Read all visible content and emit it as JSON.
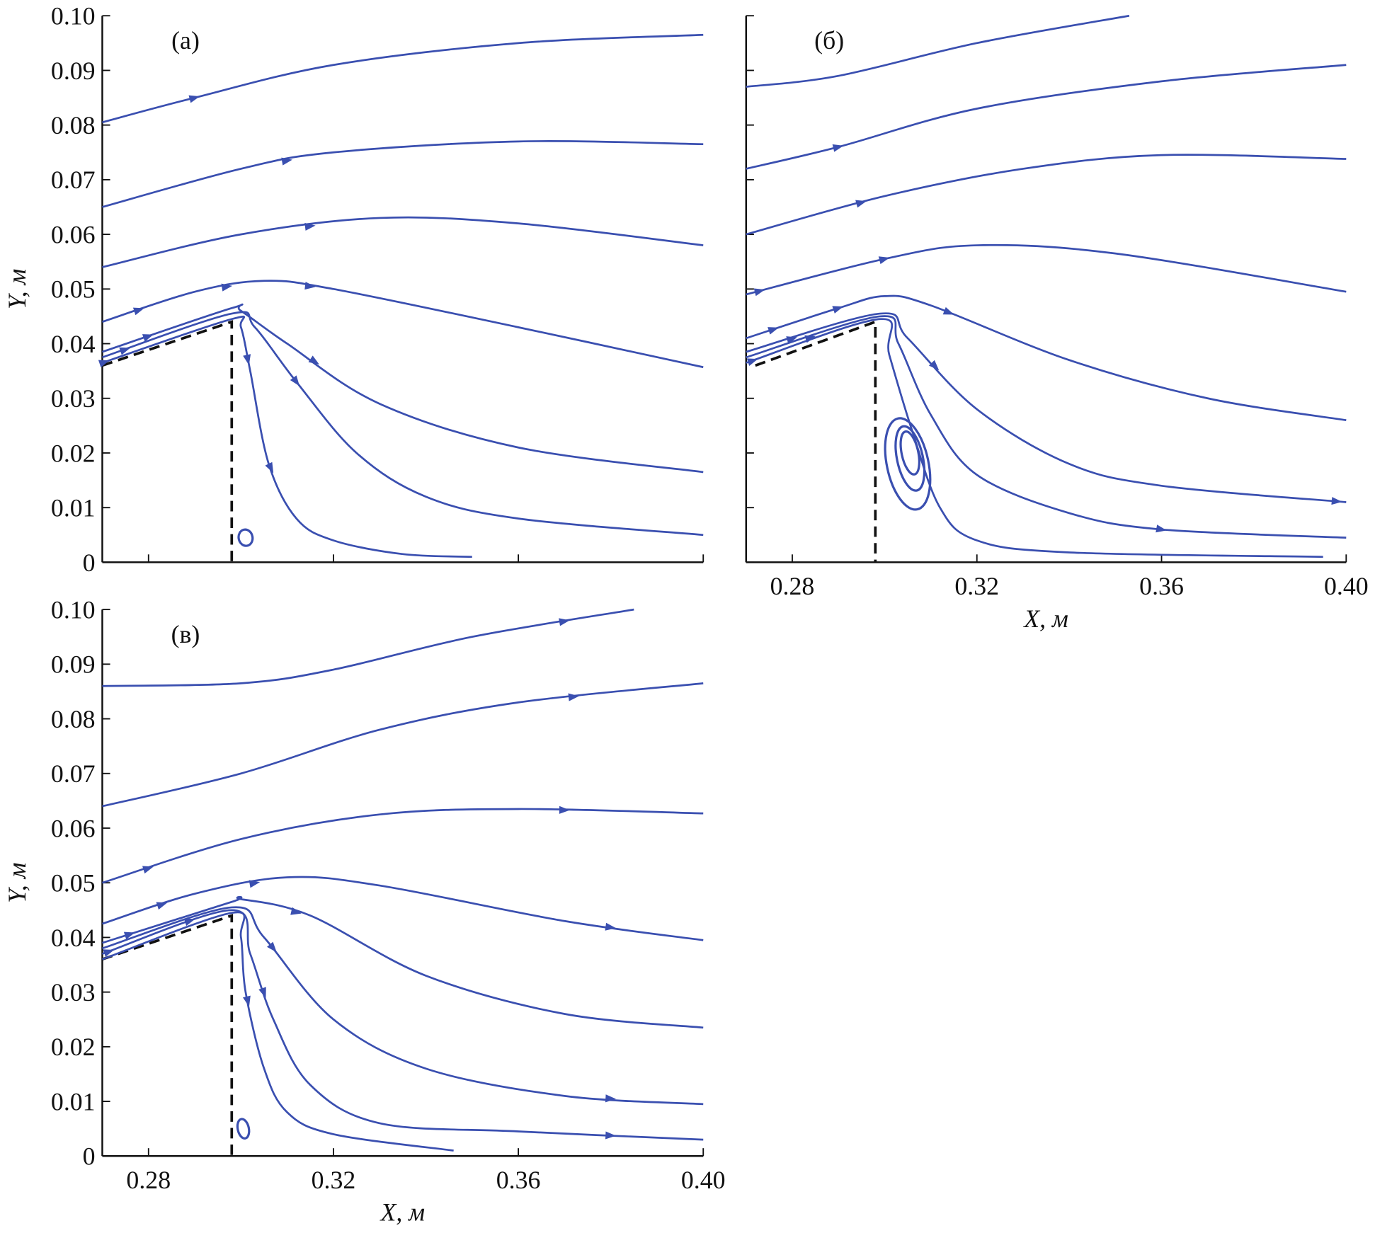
{
  "chart_data": [
    {
      "type": "line",
      "panel_label": "(а)",
      "xlabel": "",
      "ylabel": "Y, м",
      "xlim": [
        0.27,
        0.4
      ],
      "ylim": [
        0,
        0.1
      ],
      "xticks": [
        0.28,
        0.32,
        0.36,
        0.4
      ],
      "xtick_labels": [],
      "yticks": [
        0,
        0.01,
        0.02,
        0.03,
        0.04,
        0.05,
        0.06,
        0.07,
        0.08,
        0.09,
        0.1
      ],
      "ytick_labels": [
        "0",
        "0.01",
        "0.02",
        "0.03",
        "0.04",
        "0.05",
        "0.06",
        "0.07",
        "0.08",
        "0.09",
        "0.10"
      ],
      "line_color": "#3a4fb0",
      "body_outline": [
        [
          0.27,
          0.036
        ],
        [
          0.298,
          0.044
        ],
        [
          0.298,
          0
        ]
      ],
      "streamlines": [
        {
          "points": [
            [
              0.27,
              0.0805
            ],
            [
              0.29,
              0.085
            ],
            [
              0.32,
              0.091
            ],
            [
              0.36,
              0.095
            ],
            [
              0.4,
              0.0965
            ]
          ],
          "arrows_at_x": [
            0.29
          ]
        },
        {
          "points": [
            [
              0.27,
              0.065
            ],
            [
              0.3,
              0.072
            ],
            [
              0.32,
              0.075
            ],
            [
              0.36,
              0.077
            ],
            [
              0.4,
              0.0765
            ]
          ],
          "arrows_at_x": [
            0.31
          ]
        },
        {
          "points": [
            [
              0.27,
              0.054
            ],
            [
              0.3,
              0.06
            ],
            [
              0.33,
              0.063
            ],
            [
              0.36,
              0.062
            ],
            [
              0.4,
              0.058
            ]
          ],
          "arrows_at_x": [
            0.315
          ]
        },
        {
          "points": [
            [
              0.27,
              0.044
            ],
            [
              0.29,
              0.0495
            ],
            [
              0.305,
              0.0515
            ],
            [
              0.32,
              0.05
            ],
            [
              0.36,
              0.043
            ],
            [
              0.4,
              0.0357
            ]
          ],
          "arrows_at_x": [
            0.278,
            0.297,
            0.315
          ]
        },
        {
          "points": [
            [
              0.27,
              0.0385
            ],
            [
              0.298,
              0.0465
            ],
            [
              0.3,
              0.046
            ],
            [
              0.31,
              0.04
            ],
            [
              0.33,
              0.029
            ],
            [
              0.36,
              0.021
            ],
            [
              0.4,
              0.0165
            ]
          ],
          "arrows_at_x": [
            0.28,
            0.316
          ]
        },
        {
          "points": [
            [
              0.27,
              0.0375
            ],
            [
              0.298,
              0.0455
            ],
            [
              0.303,
              0.043
            ],
            [
              0.312,
              0.033
            ],
            [
              0.325,
              0.02
            ],
            [
              0.34,
              0.012
            ],
            [
              0.36,
              0.008
            ],
            [
              0.4,
              0.005
            ]
          ],
          "arrows_at_x": [
            0.275,
            0.312
          ]
        },
        {
          "points": [
            [
              0.27,
              0.0365
            ],
            [
              0.298,
              0.0445
            ],
            [
              0.3,
              0.043
            ],
            [
              0.302,
              0.035
            ],
            [
              0.306,
              0.018
            ],
            [
              0.312,
              0.008
            ],
            [
              0.32,
              0.004
            ],
            [
              0.335,
              0.0015
            ],
            [
              0.35,
              0.001
            ]
          ],
          "arrows_at_x": [
            0.2705,
            0.3015,
            0.3065
          ]
        }
      ],
      "vortices": [
        {
          "center": [
            0.301,
            0.0045
          ],
          "rx": 0.0015,
          "ry": 0.0015
        }
      ]
    },
    {
      "type": "line",
      "panel_label": "(б)",
      "xlabel": "X, м",
      "ylabel": "",
      "xlim": [
        0.27,
        0.4
      ],
      "ylim": [
        0,
        0.1
      ],
      "xticks": [
        0.28,
        0.32,
        0.36,
        0.4
      ],
      "xtick_labels": [
        "0.28",
        "0.32",
        "0.36",
        "0.40"
      ],
      "yticks": [
        0,
        0.01,
        0.02,
        0.03,
        0.04,
        0.05,
        0.06,
        0.07,
        0.08,
        0.09,
        0.1
      ],
      "ytick_labels": [],
      "line_color": "#3a4fb0",
      "body_outline": [
        [
          0.272,
          0.036
        ],
        [
          0.298,
          0.044
        ],
        [
          0.298,
          0
        ]
      ],
      "streamlines": [
        {
          "points": [
            [
              0.27,
              0.087
            ],
            [
              0.29,
              0.089
            ],
            [
              0.32,
              0.095
            ],
            [
              0.353,
              0.1
            ]
          ],
          "arrows_at_x": []
        },
        {
          "points": [
            [
              0.27,
              0.072
            ],
            [
              0.29,
              0.076
            ],
            [
              0.32,
              0.083
            ],
            [
              0.36,
              0.088
            ],
            [
              0.4,
              0.091
            ]
          ],
          "arrows_at_x": [
            0.29
          ]
        },
        {
          "points": [
            [
              0.27,
              0.06
            ],
            [
              0.3,
              0.067
            ],
            [
              0.33,
              0.072
            ],
            [
              0.36,
              0.0745
            ],
            [
              0.4,
              0.0738
            ]
          ],
          "arrows_at_x": [
            0.295
          ]
        },
        {
          "points": [
            [
              0.27,
              0.049
            ],
            [
              0.3,
              0.0555
            ],
            [
              0.32,
              0.058
            ],
            [
              0.35,
              0.0565
            ],
            [
              0.4,
              0.0495
            ]
          ],
          "arrows_at_x": [
            0.273,
            0.3
          ]
        },
        {
          "points": [
            [
              0.27,
              0.041
            ],
            [
              0.29,
              0.0465
            ],
            [
              0.3,
              0.0487
            ],
            [
              0.31,
              0.047
            ],
            [
              0.34,
              0.037
            ],
            [
              0.37,
              0.03
            ],
            [
              0.4,
              0.026
            ]
          ],
          "arrows_at_x": [
            0.276,
            0.29,
            0.314
          ]
        },
        {
          "points": [
            [
              0.27,
              0.0385
            ],
            [
              0.299,
              0.0455
            ],
            [
              0.305,
              0.041
            ],
            [
              0.32,
              0.028
            ],
            [
              0.34,
              0.018
            ],
            [
              0.36,
              0.014
            ],
            [
              0.4,
              0.011
            ]
          ],
          "arrows_at_x": [
            0.28,
            0.311,
            0.398
          ]
        },
        {
          "points": [
            [
              0.27,
              0.0375
            ],
            [
              0.299,
              0.045
            ],
            [
              0.303,
              0.04
            ],
            [
              0.31,
              0.027
            ],
            [
              0.32,
              0.016
            ],
            [
              0.34,
              0.009
            ],
            [
              0.36,
              0.006
            ],
            [
              0.4,
              0.0045
            ]
          ],
          "arrows_at_x": [
            0.284,
            0.36
          ]
        },
        {
          "points": [
            [
              0.27,
              0.0365
            ],
            [
              0.299,
              0.0445
            ],
            [
              0.301,
              0.038
            ],
            [
              0.306,
              0.024
            ],
            [
              0.312,
              0.01
            ],
            [
              0.32,
              0.004
            ],
            [
              0.34,
              0.0018
            ],
            [
              0.395,
              0.001
            ]
          ],
          "arrows_at_x": [
            0.2715
          ]
        }
      ],
      "vortices": [
        {
          "center": [
            0.305,
            0.018
          ],
          "rx": 0.0045,
          "ry": 0.0085
        },
        {
          "center": [
            0.3055,
            0.019
          ],
          "rx": 0.0028,
          "ry": 0.006
        },
        {
          "center": [
            0.3055,
            0.02
          ],
          "rx": 0.0018,
          "ry": 0.004
        }
      ]
    },
    {
      "type": "line",
      "panel_label": "(в)",
      "xlabel": "X, м",
      "ylabel": "Y, м",
      "xlim": [
        0.27,
        0.4
      ],
      "ylim": [
        0,
        0.1
      ],
      "xticks": [
        0.28,
        0.32,
        0.36,
        0.4
      ],
      "xtick_labels": [
        "0.28",
        "0.32",
        "0.36",
        "0.40"
      ],
      "yticks": [
        0,
        0.01,
        0.02,
        0.03,
        0.04,
        0.05,
        0.06,
        0.07,
        0.08,
        0.09,
        0.1
      ],
      "ytick_labels": [
        "0",
        "0.01",
        "0.02",
        "0.03",
        "0.04",
        "0.05",
        "0.06",
        "0.07",
        "0.08",
        "0.09",
        "0.10"
      ],
      "line_color": "#3a4fb0",
      "body_outline": [
        [
          0.27,
          0.036
        ],
        [
          0.298,
          0.044
        ],
        [
          0.298,
          0
        ]
      ],
      "streamlines": [
        {
          "points": [
            [
              0.27,
              0.086
            ],
            [
              0.3,
              0.0865
            ],
            [
              0.32,
              0.089
            ],
            [
              0.35,
              0.095
            ],
            [
              0.385,
              0.1
            ]
          ],
          "arrows_at_x": [
            0.37
          ]
        },
        {
          "points": [
            [
              0.27,
              0.064
            ],
            [
              0.3,
              0.07
            ],
            [
              0.33,
              0.078
            ],
            [
              0.36,
              0.083
            ],
            [
              0.4,
              0.0865
            ]
          ],
          "arrows_at_x": [
            0.372
          ]
        },
        {
          "points": [
            [
              0.27,
              0.05
            ],
            [
              0.3,
              0.058
            ],
            [
              0.33,
              0.0625
            ],
            [
              0.36,
              0.0635
            ],
            [
              0.4,
              0.0627
            ]
          ],
          "arrows_at_x": [
            0.28,
            0.37
          ]
        },
        {
          "points": [
            [
              0.27,
              0.0425
            ],
            [
              0.29,
              0.048
            ],
            [
              0.31,
              0.051
            ],
            [
              0.33,
              0.0495
            ],
            [
              0.37,
              0.043
            ],
            [
              0.4,
              0.0395
            ]
          ],
          "arrows_at_x": [
            0.283,
            0.303,
            0.38
          ]
        },
        {
          "points": [
            [
              0.27,
              0.039
            ],
            [
              0.298,
              0.0465
            ],
            [
              0.3,
              0.047
            ],
            [
              0.315,
              0.044
            ],
            [
              0.34,
              0.033
            ],
            [
              0.37,
              0.026
            ],
            [
              0.4,
              0.0235
            ]
          ],
          "arrows_at_x": [
            0.276,
            0.312
          ]
        },
        {
          "points": [
            [
              0.27,
              0.038
            ],
            [
              0.298,
              0.0455
            ],
            [
              0.305,
              0.04
            ],
            [
              0.32,
              0.025
            ],
            [
              0.34,
              0.016
            ],
            [
              0.37,
              0.011
            ],
            [
              0.4,
              0.0095
            ]
          ],
          "arrows_at_x": [
            0.289,
            0.307,
            0.38
          ]
        },
        {
          "points": [
            [
              0.27,
              0.037
            ],
            [
              0.298,
              0.045
            ],
            [
              0.302,
              0.037
            ],
            [
              0.307,
              0.025
            ],
            [
              0.315,
              0.013
            ],
            [
              0.33,
              0.006
            ],
            [
              0.36,
              0.0045
            ],
            [
              0.4,
              0.003
            ]
          ],
          "arrows_at_x": [
            0.2715,
            0.305,
            0.38
          ]
        },
        {
          "points": [
            [
              0.27,
              0.036
            ],
            [
              0.298,
              0.0445
            ],
            [
              0.3,
              0.04
            ],
            [
              0.301,
              0.03
            ],
            [
              0.305,
              0.016
            ],
            [
              0.31,
              0.008
            ],
            [
              0.32,
              0.004
            ],
            [
              0.346,
              0.001
            ]
          ],
          "arrows_at_x": [
            0.3015
          ]
        }
      ],
      "vortices": [
        {
          "center": [
            0.3005,
            0.005
          ],
          "rx": 0.0012,
          "ry": 0.0018
        }
      ]
    }
  ]
}
